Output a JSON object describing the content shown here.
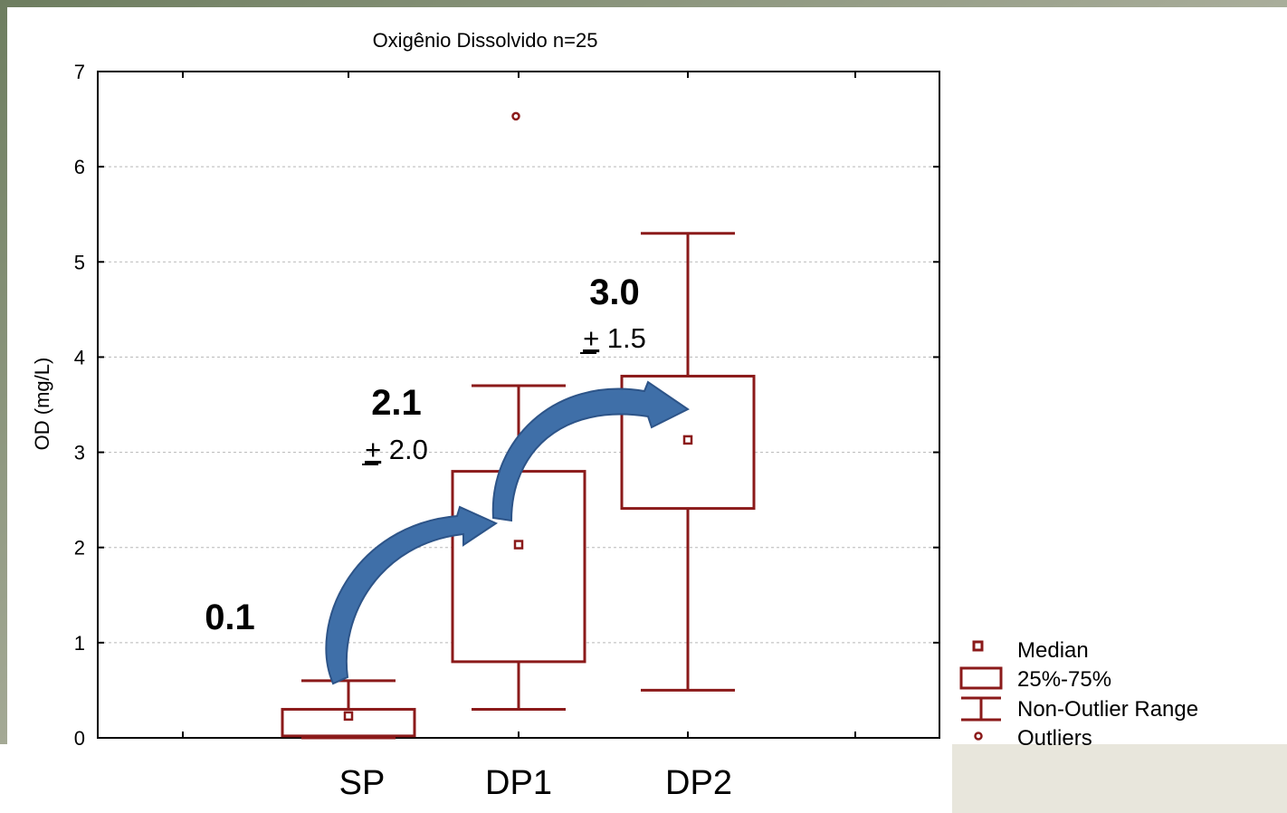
{
  "chart_data": {
    "type": "box",
    "title": "Oxigênio Dissolvido n=25",
    "ylabel": "OD (mg/L)",
    "xlabel": "",
    "ylim": [
      0,
      7
    ],
    "yticks": [
      0,
      1,
      2,
      3,
      4,
      5,
      6,
      7
    ],
    "grid": true,
    "legend_position": "bottom-right",
    "categories": [
      "SP",
      "DP1",
      "DP2"
    ],
    "boxes": [
      {
        "category": "SP",
        "median": 0.23,
        "q1": 0.02,
        "q3": 0.3,
        "whisker_low": 0.0,
        "whisker_high": 0.6,
        "outliers": []
      },
      {
        "category": "DP1",
        "median": 2.03,
        "q1": 0.8,
        "q3": 2.8,
        "whisker_low": 0.3,
        "whisker_high": 3.7,
        "outliers": [
          6.53
        ]
      },
      {
        "category": "DP2",
        "median": 3.13,
        "q1": 2.41,
        "q3": 3.8,
        "whisker_low": 0.5,
        "whisker_high": 5.3,
        "outliers": []
      }
    ],
    "annotations": [
      {
        "category": "SP",
        "mean": "0.1",
        "sd": ""
      },
      {
        "category": "DP1",
        "mean": "2.1",
        "sd": "2.0"
      },
      {
        "category": "DP2",
        "mean": "3.0",
        "sd": "1.5"
      }
    ],
    "pm_symbol": "+",
    "legend": [
      "Median",
      "25%-75%",
      "Non-Outlier Range",
      "Outliers"
    ],
    "colors": {
      "box": "#8b1a1a",
      "arrow": "#3f6fa8",
      "grid": "#b8b8b8"
    }
  }
}
